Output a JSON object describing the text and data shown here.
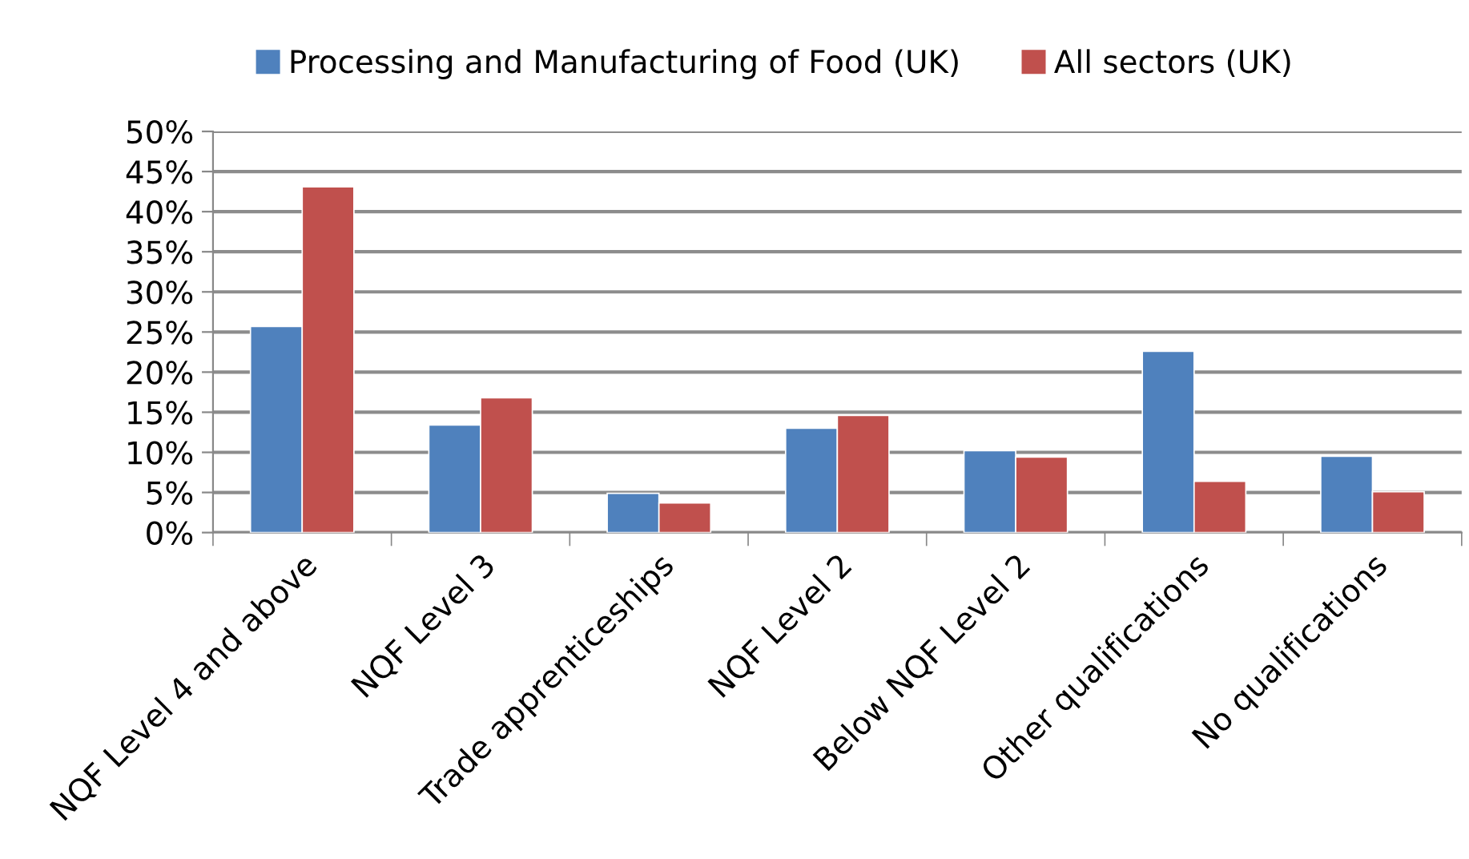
{
  "chart_data": {
    "type": "bar",
    "categories": [
      "NQF Level 4 and above",
      "NQF Level 3",
      "Trade apprenticeships",
      "NQF Level 2",
      "Below NQF Level 2",
      "Other qualifications",
      "No qualifications"
    ],
    "series": [
      {
        "name": "Processing and Manufacturing of Food (UK)",
        "color": "#4f81bd",
        "values": [
          25.7,
          13.4,
          4.9,
          13.0,
          10.2,
          22.6,
          9.5
        ]
      },
      {
        "name": "All sectors (UK)",
        "color": "#c0504d",
        "values": [
          43.1,
          16.8,
          3.7,
          14.6,
          9.4,
          6.4,
          5.1
        ]
      }
    ],
    "ylim": [
      0,
      50
    ],
    "yticks": [
      {
        "value": 0,
        "label": "0%"
      },
      {
        "value": 5,
        "label": "5%"
      },
      {
        "value": 10,
        "label": "10%"
      },
      {
        "value": 15,
        "label": "15%"
      },
      {
        "value": 20,
        "label": "20%"
      },
      {
        "value": 25,
        "label": "25%"
      },
      {
        "value": 30,
        "label": "30%"
      },
      {
        "value": 35,
        "label": "35%"
      },
      {
        "value": 40,
        "label": "40%"
      },
      {
        "value": 45,
        "label": "45%"
      },
      {
        "value": 50,
        "label": "50%"
      }
    ],
    "grid": "y",
    "legend": "top"
  }
}
